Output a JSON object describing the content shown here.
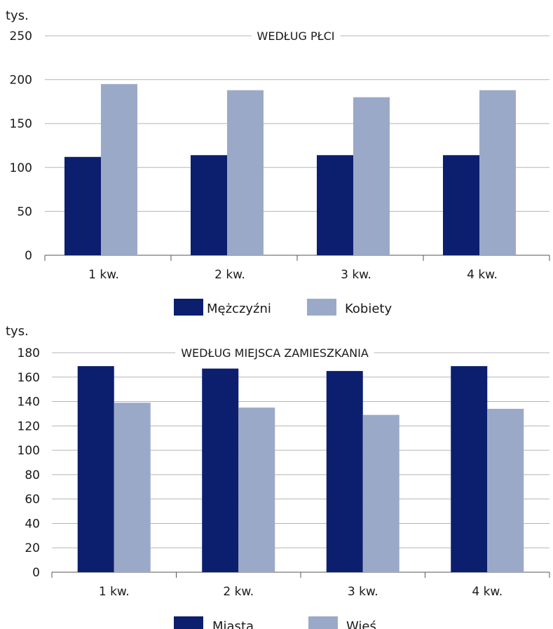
{
  "chart_data": [
    {
      "type": "bar",
      "title": "WEDŁUG PŁCI",
      "unit_label": "tys.",
      "categories": [
        "1 kw.",
        "2 kw.",
        "3 kw.",
        "4 kw."
      ],
      "ylim": [
        0,
        250
      ],
      "yticks": [
        0,
        50,
        100,
        150,
        200,
        250
      ],
      "grid": true,
      "legend_position": "bottom",
      "series": [
        {
          "name": "Mężczyźni",
          "color": "#0b1f6e",
          "values": [
            112,
            114,
            114,
            114
          ]
        },
        {
          "name": "Kobiety",
          "color": "#9ba9c9",
          "values": [
            195,
            188,
            180,
            188
          ]
        }
      ]
    },
    {
      "type": "bar",
      "title": "WEDŁUG MIEJSCA ZAMIESZKANIA",
      "unit_label": "tys.",
      "categories": [
        "1 kw.",
        "2 kw.",
        "3 kw.",
        "4 kw."
      ],
      "ylim": [
        0,
        180
      ],
      "yticks": [
        0,
        20,
        40,
        60,
        80,
        100,
        120,
        140,
        160,
        180
      ],
      "grid": true,
      "legend_position": "bottom",
      "series": [
        {
          "name": "Miasta",
          "color": "#0b1f6e",
          "values": [
            169,
            167,
            165,
            169
          ]
        },
        {
          "name": "Wieś",
          "color": "#9ba9c9",
          "values": [
            139,
            135,
            129,
            134
          ]
        }
      ]
    }
  ]
}
